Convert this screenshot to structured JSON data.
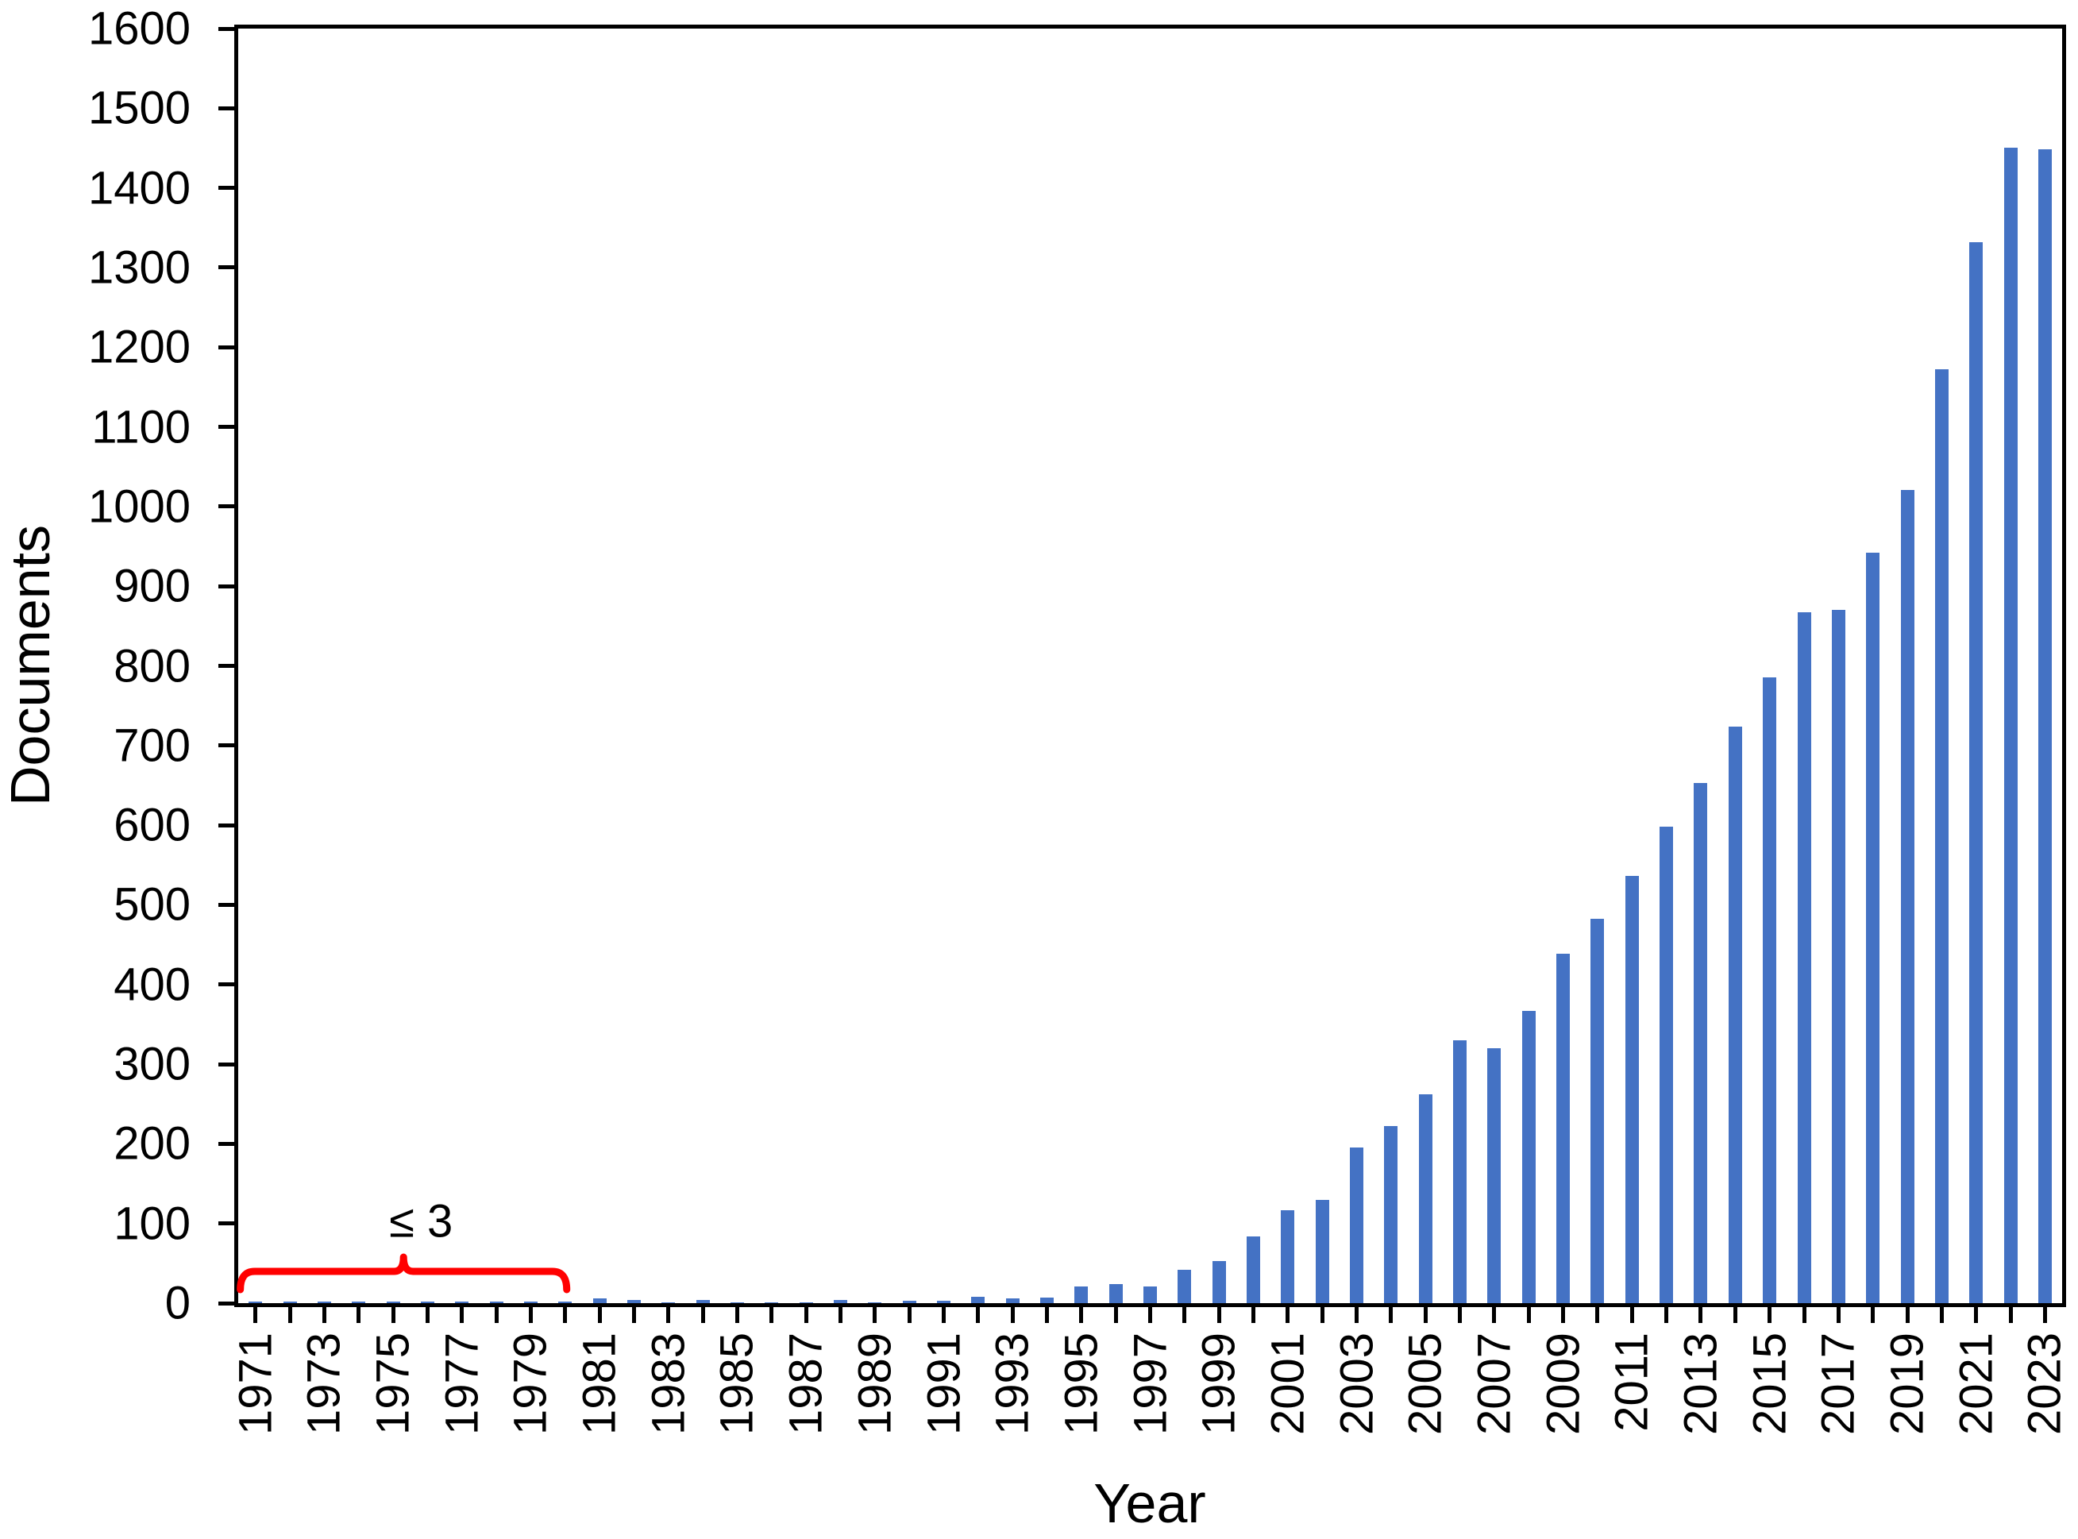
{
  "chart_data": {
    "type": "bar",
    "title": "",
    "xlabel": "Year",
    "ylabel": "Documents",
    "categories": [
      1971,
      1972,
      1973,
      1974,
      1975,
      1976,
      1977,
      1978,
      1979,
      1980,
      1981,
      1982,
      1983,
      1984,
      1985,
      1986,
      1987,
      1988,
      1989,
      1990,
      1991,
      1992,
      1993,
      1994,
      1995,
      1996,
      1997,
      1998,
      1999,
      2000,
      2001,
      2002,
      2003,
      2004,
      2005,
      2006,
      2007,
      2008,
      2009,
      2010,
      2011,
      2012,
      2013,
      2014,
      2015,
      2016,
      2017,
      2018,
      2019,
      2020,
      2021,
      2022,
      2023
    ],
    "values": [
      2,
      2,
      2,
      2,
      2,
      2,
      2,
      2,
      2,
      2,
      6,
      4,
      1,
      4,
      1,
      1,
      1,
      4,
      1,
      3,
      3,
      8,
      6,
      7,
      21,
      24,
      21,
      42,
      53,
      84,
      117,
      130,
      195,
      222,
      262,
      330,
      320,
      367,
      439,
      483,
      536,
      598,
      653,
      724,
      786,
      867,
      870,
      942,
      1021,
      1172,
      1332,
      1451,
      1449
    ],
    "ylim": [
      0,
      1600
    ],
    "ytick_step": 100,
    "x_label_every_years": 2,
    "x_labels_shown": [
      "1971",
      "1973",
      "1975",
      "1977",
      "1979",
      "1981",
      "1983",
      "1985",
      "1987",
      "1989",
      "1991",
      "1993",
      "1995",
      "1997",
      "1999",
      "2001",
      "2003",
      "2005",
      "2007",
      "2009",
      "2011",
      "2013",
      "2015",
      "2017",
      "2019",
      "2021",
      "2023"
    ],
    "grid": "off",
    "legend": "none",
    "bar_color": "#4472C4",
    "axis_color": "#000000",
    "annotation": {
      "label": "≤ 3",
      "start_year": 1971,
      "end_year": 1980,
      "shape": "curly-brace",
      "color": "#FF0000"
    }
  }
}
